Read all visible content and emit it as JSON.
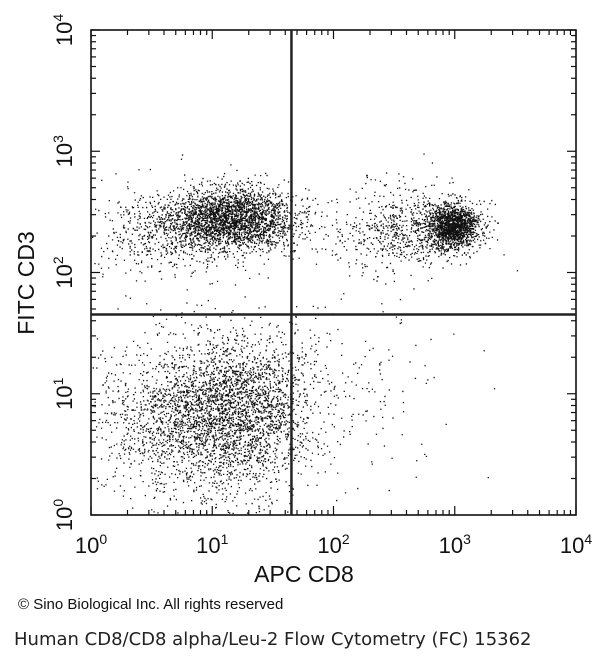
{
  "chart_data": {
    "type": "scatter",
    "subtype": "flow-cytometry-dot-plot",
    "xlabel": "APC CD8",
    "ylabel": "FITC CD3",
    "x_scale": "log",
    "y_scale": "log",
    "xlim": [
      1,
      10000
    ],
    "ylim": [
      1,
      10000
    ],
    "x_ticks": [
      {
        "value": 1,
        "base": "10",
        "exp": "0"
      },
      {
        "value": 10,
        "base": "10",
        "exp": "1"
      },
      {
        "value": 100,
        "base": "10",
        "exp": "2"
      },
      {
        "value": 1000,
        "base": "10",
        "exp": "3"
      },
      {
        "value": 10000,
        "base": "10",
        "exp": "4"
      }
    ],
    "y_ticks": [
      {
        "value": 1,
        "base": "10",
        "exp": "0"
      },
      {
        "value": 10,
        "base": "10",
        "exp": "1"
      },
      {
        "value": 100,
        "base": "10",
        "exp": "2"
      },
      {
        "value": 1000,
        "base": "10",
        "exp": "3"
      },
      {
        "value": 10000,
        "base": "10",
        "exp": "4"
      }
    ],
    "quadrant_gates": {
      "x": 45,
      "y": 45
    },
    "grid": false,
    "point_color": "#111111",
    "populations": [
      {
        "center": [
          15,
          280
        ],
        "spread": [
          0.28,
          0.13
        ],
        "weight": 0.36
      },
      {
        "center": [
          5,
          220
        ],
        "spread": [
          0.4,
          0.17
        ],
        "weight": 0.1
      },
      {
        "center": [
          400,
          220
        ],
        "spread": [
          0.28,
          0.18
        ],
        "weight": 0.1
      },
      {
        "center": [
          950,
          240
        ],
        "spread": [
          0.11,
          0.09
        ],
        "weight": 0.22
      },
      {
        "center": [
          15,
          7
        ],
        "spread": [
          0.35,
          0.32
        ],
        "weight": 0.42
      },
      {
        "center": [
          4,
          6
        ],
        "spread": [
          0.35,
          0.32
        ],
        "weight": 0.12
      },
      {
        "center": [
          150,
          10
        ],
        "spread": [
          0.4,
          0.38
        ],
        "weight": 0.02
      }
    ]
  },
  "copyright": "© Sino Biological Inc. All rights reserved",
  "caption": "Human CD8/CD8 alpha/Leu-2 Flow Cytometry (FC) 15362"
}
